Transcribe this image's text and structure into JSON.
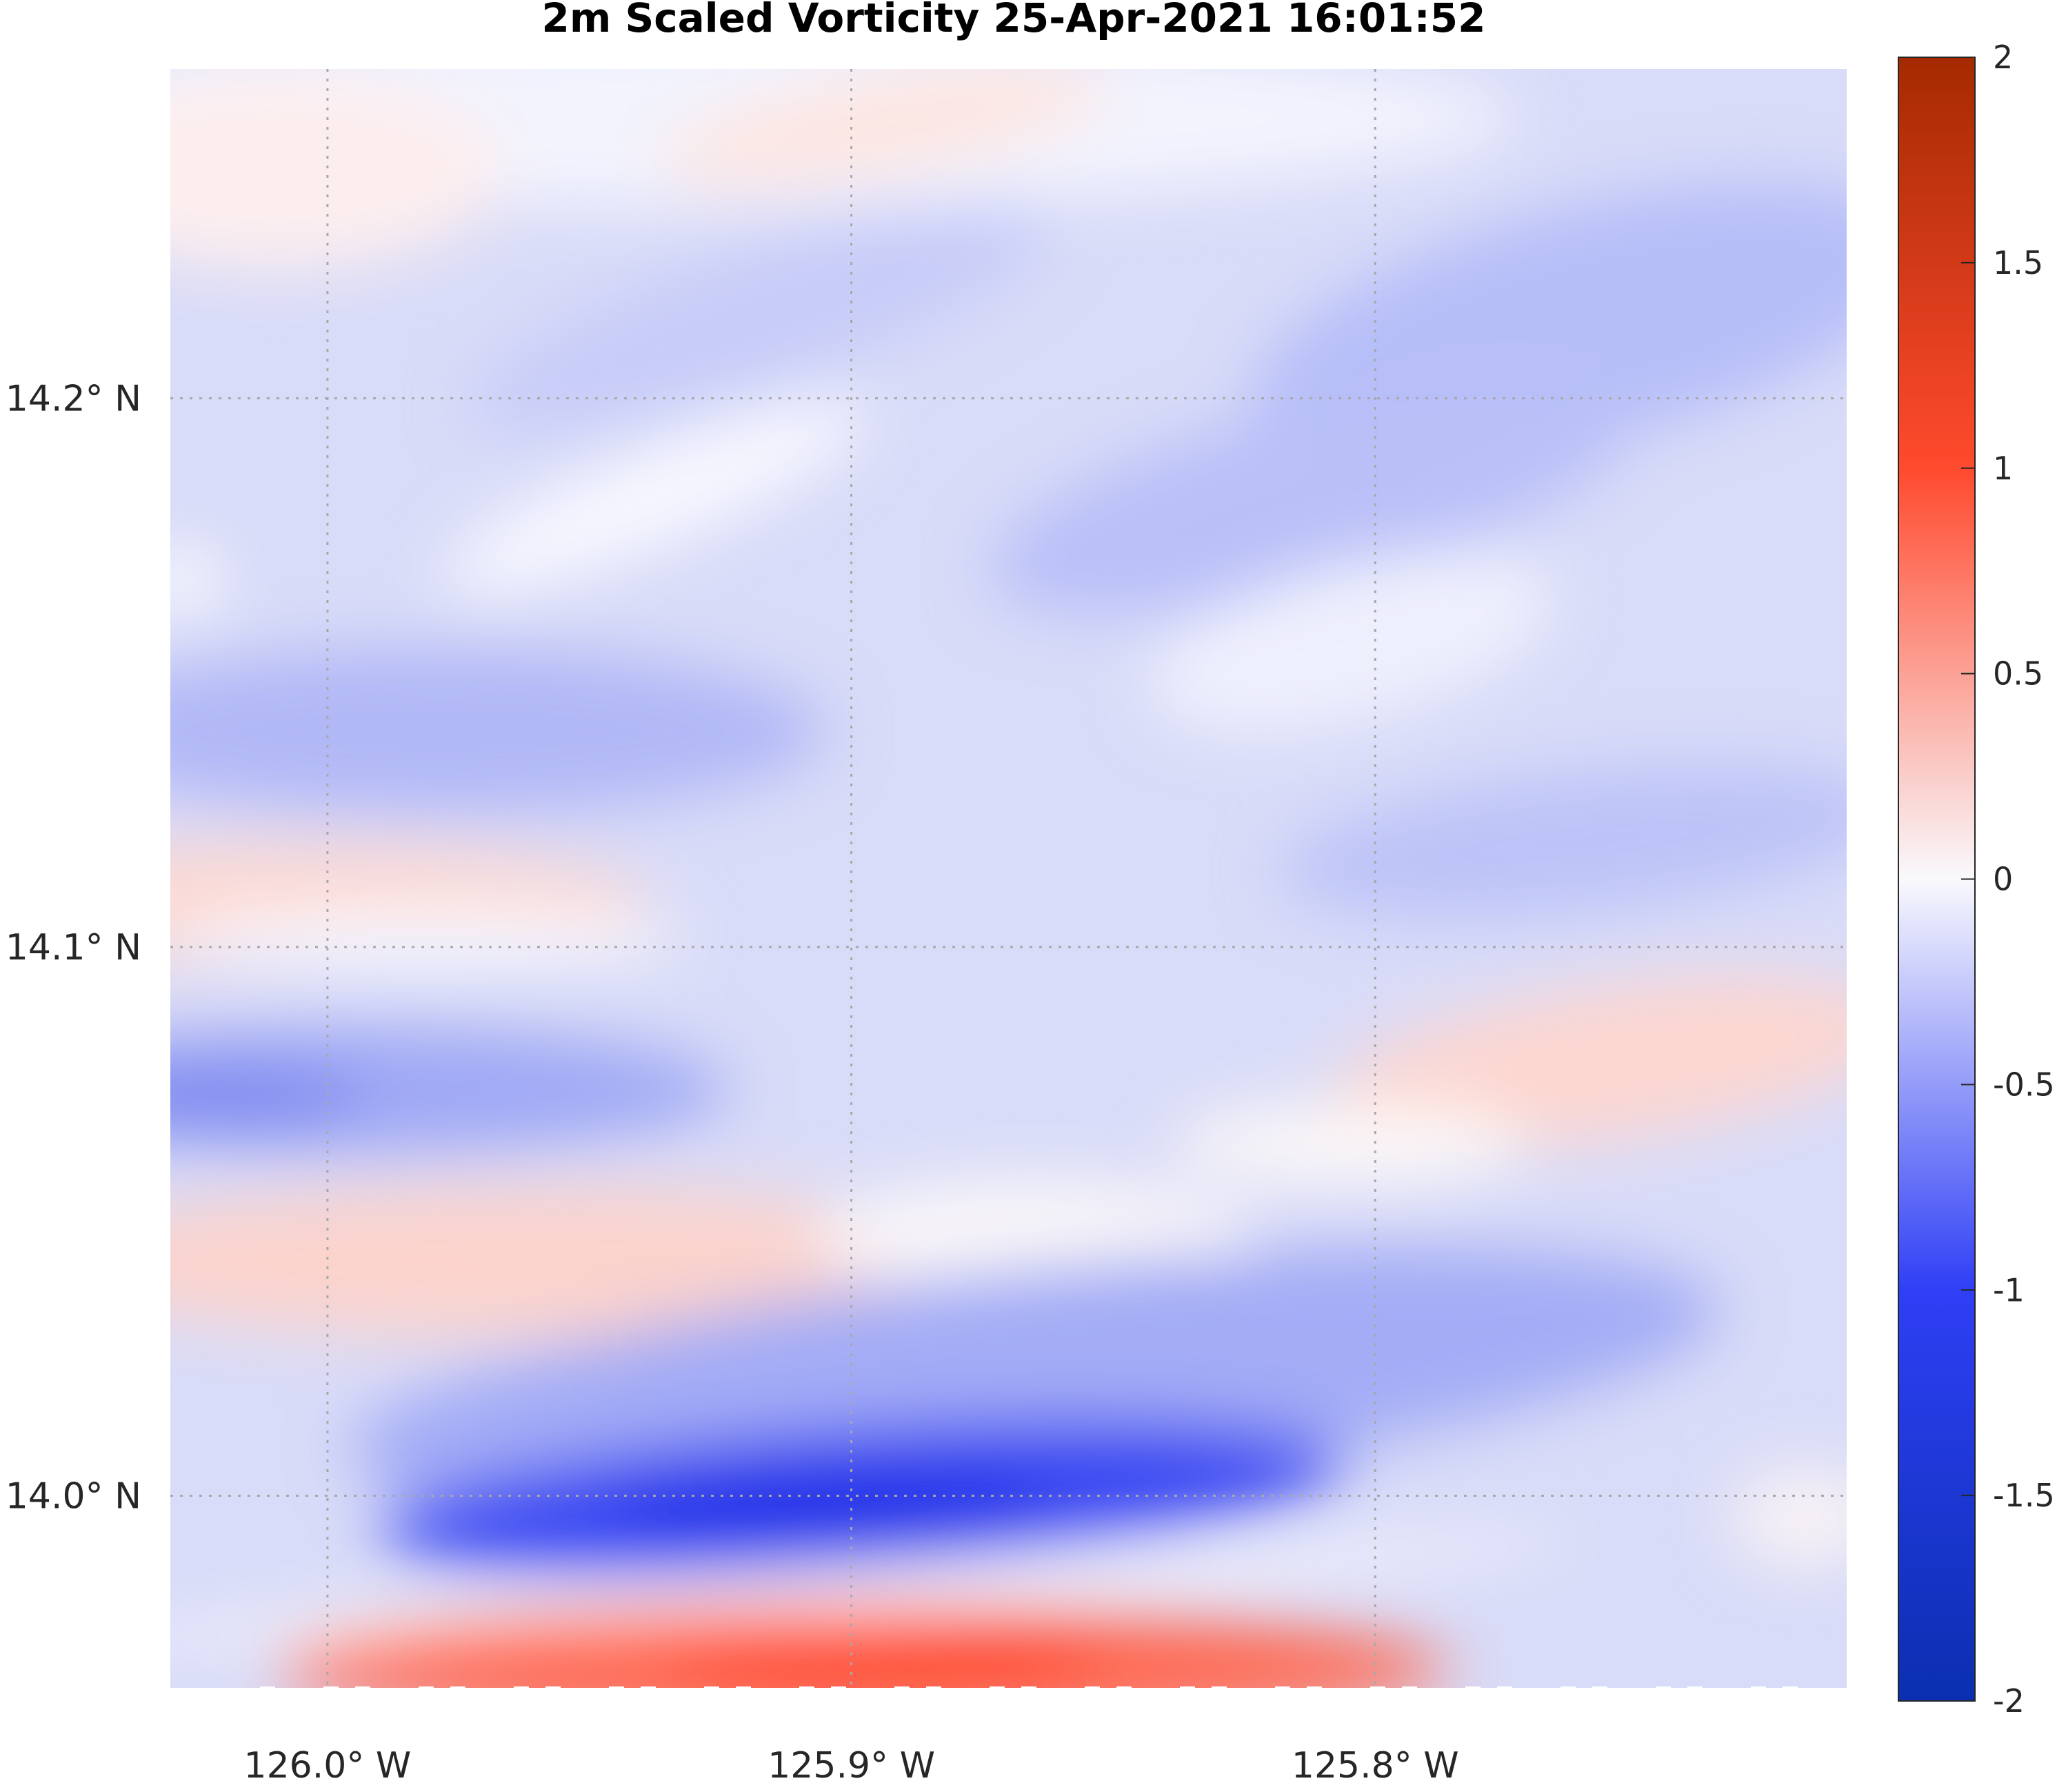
{
  "chart_data": {
    "type": "heatmap",
    "title": "2m Scaled Vorticity  25-Apr-2021 16:01:52",
    "x_ticks": [
      "126.0° W",
      "125.9° W",
      "125.8° W"
    ],
    "x_tick_values": [
      -126.0,
      -125.9,
      -125.8
    ],
    "y_ticks": [
      "14.2° N",
      "14.1° N",
      "14.0° N"
    ],
    "y_tick_values": [
      14.2,
      14.1,
      14.0
    ],
    "xlim": [
      -126.03,
      -125.71
    ],
    "ylim": [
      13.965,
      14.26
    ],
    "grid": true,
    "colorbar": {
      "ticks": [
        "2",
        "1.5",
        "1",
        "0.5",
        "0",
        "-0.5",
        "-1",
        "-1.5",
        "-2"
      ],
      "tick_values": [
        2,
        1.5,
        1,
        0.5,
        0,
        -0.5,
        -1,
        -1.5,
        -2
      ],
      "range": [
        -2,
        2
      ],
      "colormap": "blue-white-red diverging",
      "color_low": "#0a2fb0",
      "color_mid": "#f9f9fd",
      "color_high": "#a52a00"
    },
    "features": [
      {
        "lon": -125.885,
        "lat": 13.975,
        "value": 1.2
      },
      {
        "lon": -125.89,
        "lat": 14.0,
        "value": -1.3
      },
      {
        "lon": -125.97,
        "lat": 14.044,
        "value": 0.3
      },
      {
        "lon": -126.01,
        "lat": 14.07,
        "value": -0.7
      },
      {
        "lon": -126.01,
        "lat": 14.107,
        "value": 0.25
      },
      {
        "lon": -125.75,
        "lat": 14.077,
        "value": 0.25
      },
      {
        "lon": -125.9,
        "lat": 14.25,
        "value": 0.1
      },
      {
        "lon": -126.0,
        "lat": 14.14,
        "value": -0.45
      },
      {
        "lon": -125.8,
        "lat": 14.15,
        "value": -0.1
      },
      {
        "lon": -125.8,
        "lat": 14.19,
        "value": -0.4
      }
    ]
  }
}
